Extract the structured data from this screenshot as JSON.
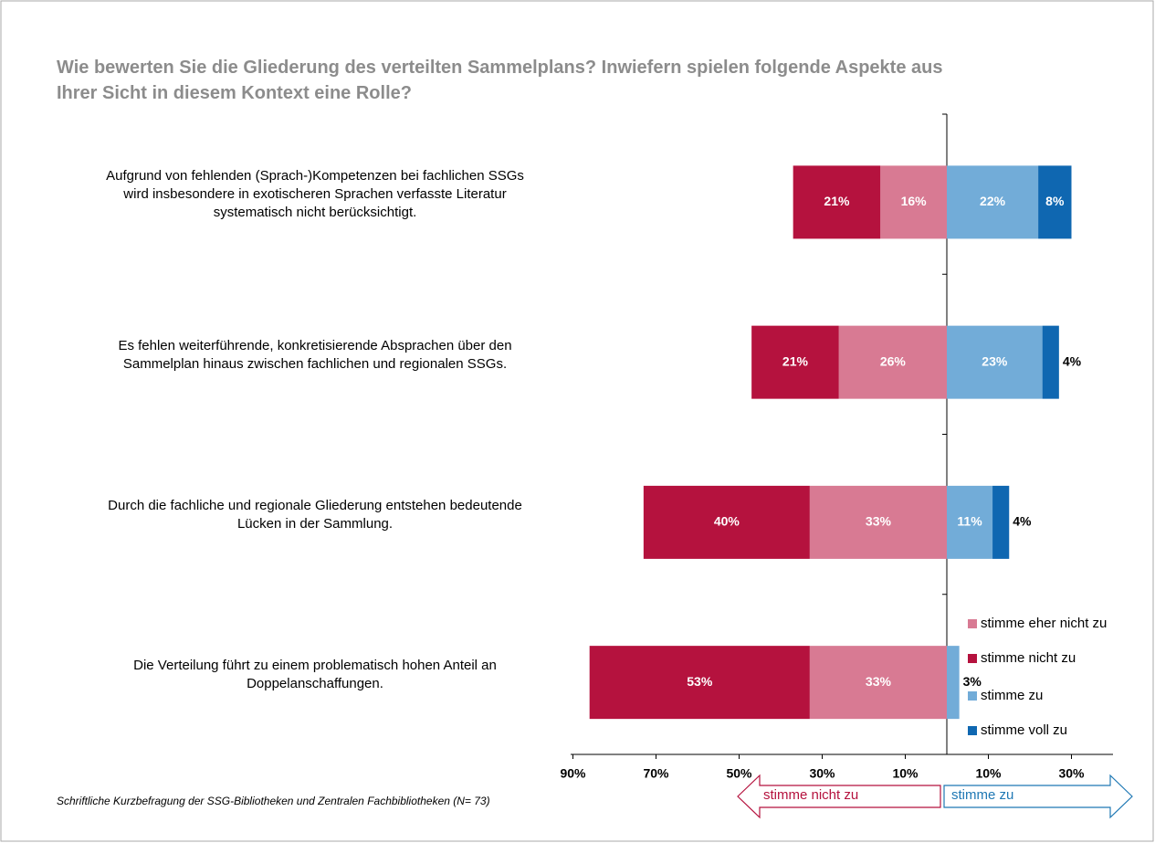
{
  "chart_data": {
    "type": "diverging-bar",
    "title": "Wie bewerten Sie die Gliederung des verteilten Sammelplans? Inwiefern spielen folgende Aspekte aus\nIhrer Sicht in diesem Kontext eine Rolle?",
    "footnote": "Schriftliche Kurzbefragung der SSG-Bibliotheken und Zentralen Fachbibliotheken (N= 73)",
    "annotations": [
      "stimme nicht zu",
      "stimme zu"
    ],
    "categories": [
      "Aufgrund von fehlenden (Sprach-)Kompetenzen bei fachlichen SSGs\nwird insbesondere in exotischeren Sprachen verfasste Literatur\nsystematisch nicht berücksichtigt.",
      "Es fehlen weiterführende, konkretisierende Absprachen über den\nSammelplan hinaus zwischen fachlichen und regionalen SSGs.",
      "Durch die fachliche und regionale Gliederung entstehen bedeutende\nLücken in der Sammlung.",
      "Die Verteilung führt zu einem problematisch hohen Anteil an\nDoppelanschaffungen."
    ],
    "series": [
      {
        "name": "stimme eher nicht zu",
        "color": "#d87a93",
        "values": [
          -16,
          -26,
          -33,
          -33
        ],
        "value_labels": [
          "16%",
          "26%",
          "33%",
          "33%"
        ]
      },
      {
        "name": "stimme nicht zu",
        "color": "#b5123e",
        "values": [
          -21,
          -21,
          -40,
          -53
        ],
        "value_labels": [
          "21%",
          "21%",
          "40%",
          "53%"
        ]
      },
      {
        "name": "stimme zu",
        "color": "#72acd8",
        "values": [
          22,
          23,
          11,
          3
        ],
        "value_labels": [
          "22%",
          "23%",
          "11%",
          "3%"
        ]
      },
      {
        "name": "stimme voll zu",
        "color": "#0f67b1",
        "values": [
          8,
          4,
          4,
          null
        ],
        "value_labels": [
          "8%",
          "4%",
          "4%",
          null
        ]
      }
    ],
    "xlim": [
      -90,
      40
    ],
    "xticks": [
      {
        "value": -90,
        "label": "90%"
      },
      {
        "value": -70,
        "label": "70%"
      },
      {
        "value": -50,
        "label": "50%"
      },
      {
        "value": -30,
        "label": "30%"
      },
      {
        "value": -10,
        "label": "10%"
      },
      {
        "value": 10,
        "label": "10%"
      },
      {
        "value": 30,
        "label": "30%"
      }
    ],
    "legend": "right"
  }
}
